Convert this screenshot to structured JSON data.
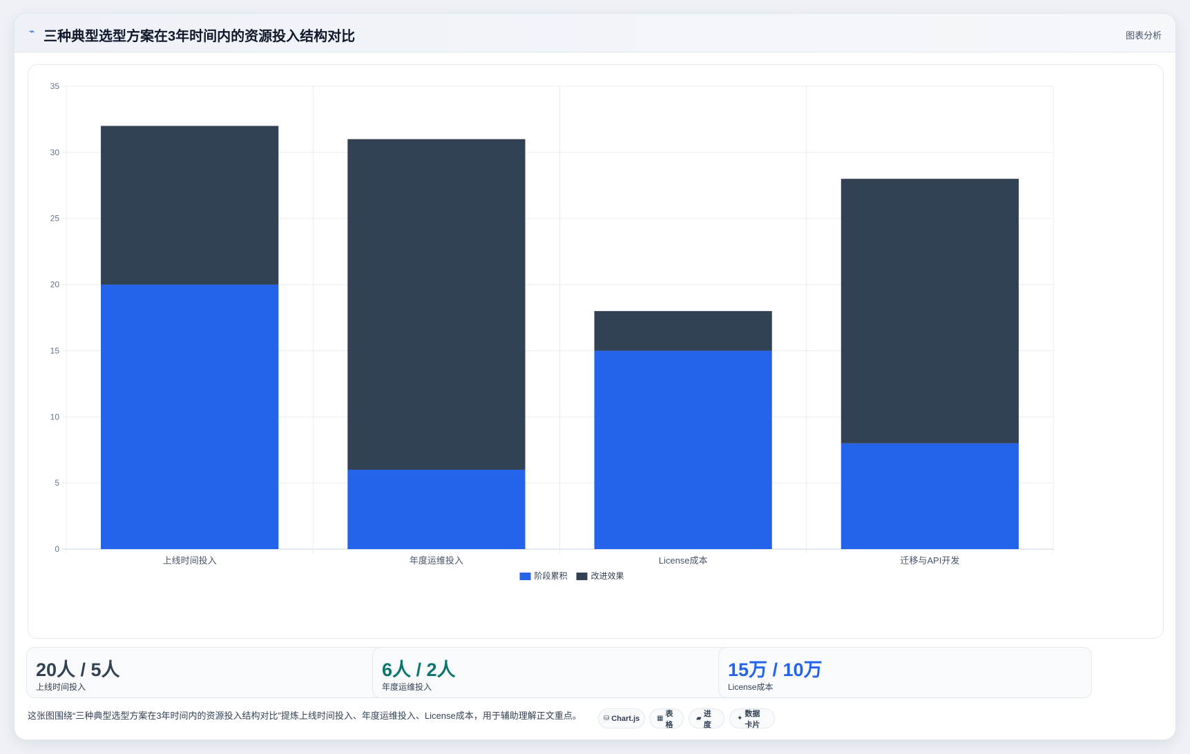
{
  "header": {
    "title_icon": "chart-line-icon",
    "title": "三种典型选型方案在3年时间内的资源投入结构对比",
    "analysis_link": "图表分析"
  },
  "chart_data": {
    "type": "bar",
    "stacked": true,
    "categories": [
      "上线时间投入",
      "年度运维投入",
      "License成本",
      "迁移与API开发"
    ],
    "series": [
      {
        "name": "阶段累积",
        "values": [
          20,
          6,
          15,
          8
        ],
        "color": "#2563eb"
      },
      {
        "name": "改进效果",
        "values": [
          12,
          25,
          3,
          20
        ],
        "color": "#334155"
      }
    ],
    "ylim": [
      0,
      35
    ],
    "yticks": [
      0,
      5,
      10,
      15,
      20,
      25,
      30,
      35
    ],
    "grid": true,
    "legend_position": "bottom-center",
    "title": "",
    "xlabel": "",
    "ylabel": ""
  },
  "stats": [
    {
      "value": "20人 / 5人",
      "label": "上线时间投入",
      "color": "#334155"
    },
    {
      "value": "6人 / 2人",
      "label": "年度运维投入",
      "color": "#0f766e"
    },
    {
      "value": "15万 / 10万",
      "label": "License成本",
      "color": "#2563eb"
    }
  ],
  "footer": {
    "note": "这张图围绕“三种典型选型方案在3年时间内的资源投入结构对比”提炼上线时间投入、年度运维投入、License成本，用于辅助理解正文重点。",
    "pills": [
      {
        "icon": "⛁",
        "icon_name": "chartjs-icon",
        "label": "Chart.js"
      },
      {
        "icon": "▦",
        "icon_name": "table-icon",
        "label": "表格"
      },
      {
        "icon": "▰",
        "icon_name": "progress-icon",
        "label": "进度"
      },
      {
        "icon": "✦",
        "icon_name": "sparkle-icon",
        "label": "数据卡片"
      }
    ]
  }
}
